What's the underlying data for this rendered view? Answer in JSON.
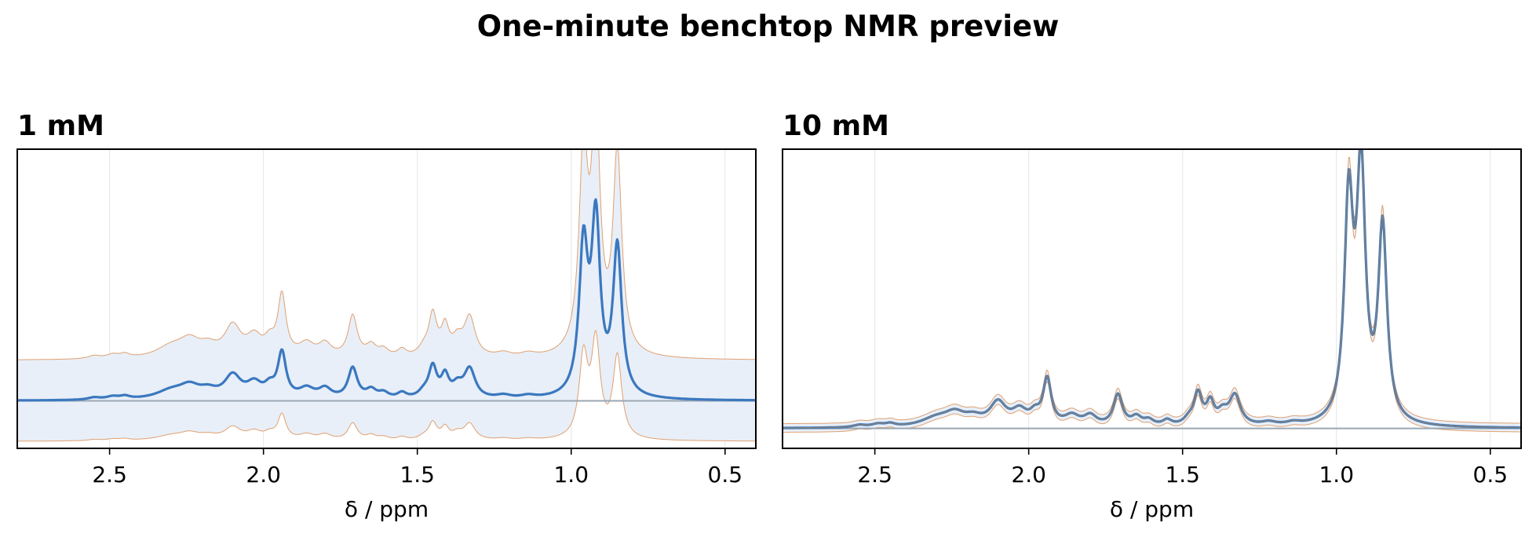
{
  "figure": {
    "title": "One-minute benchtop NMR preview"
  },
  "colors": {
    "mean": "#3b78bf",
    "band_edge": "#e0a070",
    "band_fill": "#e8eff8",
    "baseline": "#9aa7b3",
    "overlay": "#808080",
    "grid": "#e6e6e6"
  },
  "chart_data": [
    {
      "type": "line",
      "title": "1 mM",
      "xlabel": "δ / ppm",
      "x_reversed": true,
      "xlim": [
        2.8,
        0.4
      ],
      "ylim": [
        -0.17,
        0.9
      ],
      "xticks": [
        2.5,
        2.0,
        1.5,
        1.0,
        0.5
      ],
      "xtick_labels": [
        "2.5",
        "2.0",
        "1.5",
        "1.0",
        "0.5"
      ],
      "grid": "x",
      "baseline": 0,
      "band": {
        "lower_offset": -0.145,
        "upper_offset": 0.145,
        "lower_scale": 0.55,
        "upper_scale": 1.35
      },
      "series": [
        {
          "role": "mean",
          "peaks": [
            [
              2.55,
              0.008,
              0.025
            ],
            [
              2.49,
              0.01,
              0.025
            ],
            [
              2.45,
              0.01,
              0.02
            ],
            [
              2.3,
              0.03,
              0.06
            ],
            [
              2.24,
              0.04,
              0.04
            ],
            [
              2.18,
              0.025,
              0.035
            ],
            [
              2.1,
              0.08,
              0.032
            ],
            [
              2.03,
              0.05,
              0.03
            ],
            [
              1.98,
              0.035,
              0.02
            ],
            [
              1.94,
              0.16,
              0.016
            ],
            [
              1.86,
              0.035,
              0.03
            ],
            [
              1.8,
              0.035,
              0.025
            ],
            [
              1.71,
              0.11,
              0.018
            ],
            [
              1.65,
              0.03,
              0.02
            ],
            [
              1.61,
              0.02,
              0.02
            ],
            [
              1.55,
              0.02,
              0.018
            ],
            [
              1.48,
              0.02,
              0.02
            ],
            [
              1.45,
              0.11,
              0.016
            ],
            [
              1.41,
              0.075,
              0.015
            ],
            [
              1.37,
              0.04,
              0.02
            ],
            [
              1.33,
              0.105,
              0.022
            ],
            [
              1.22,
              0.012,
              0.03
            ],
            [
              1.14,
              0.01,
              0.03
            ],
            [
              0.96,
              0.52,
              0.017
            ],
            [
              0.92,
              0.61,
              0.017
            ],
            [
              0.85,
              0.53,
              0.017
            ]
          ]
        }
      ]
    },
    {
      "type": "line",
      "title": "10 mM",
      "xlabel": "δ / ppm",
      "x_reversed": true,
      "xlim": [
        2.8,
        0.4
      ],
      "ylim": [
        -0.07,
        0.98
      ],
      "xticks": [
        2.5,
        2.0,
        1.5,
        1.0,
        0.5
      ],
      "xtick_labels": [
        "2.5",
        "2.0",
        "1.5",
        "1.0",
        "0.5"
      ],
      "grid": "x",
      "baseline": 0,
      "band": {
        "lower_offset": -0.015,
        "upper_offset": 0.015,
        "lower_scale": 0.97,
        "upper_scale": 1.03
      },
      "series": [
        {
          "role": "mean",
          "peaks": [
            [
              2.55,
              0.008,
              0.025
            ],
            [
              2.49,
              0.01,
              0.025
            ],
            [
              2.45,
              0.01,
              0.02
            ],
            [
              2.3,
              0.03,
              0.06
            ],
            [
              2.24,
              0.04,
              0.04
            ],
            [
              2.18,
              0.025,
              0.035
            ],
            [
              2.1,
              0.08,
              0.032
            ],
            [
              2.03,
              0.05,
              0.03
            ],
            [
              1.98,
              0.035,
              0.02
            ],
            [
              1.94,
              0.16,
              0.016
            ],
            [
              1.86,
              0.035,
              0.03
            ],
            [
              1.8,
              0.035,
              0.025
            ],
            [
              1.71,
              0.11,
              0.018
            ],
            [
              1.65,
              0.03,
              0.02
            ],
            [
              1.61,
              0.02,
              0.02
            ],
            [
              1.55,
              0.02,
              0.018
            ],
            [
              1.48,
              0.02,
              0.02
            ],
            [
              1.45,
              0.11,
              0.016
            ],
            [
              1.41,
              0.075,
              0.015
            ],
            [
              1.37,
              0.04,
              0.02
            ],
            [
              1.33,
              0.105,
              0.022
            ],
            [
              1.22,
              0.012,
              0.03
            ],
            [
              1.14,
              0.01,
              0.03
            ],
            [
              0.96,
              0.76,
              0.017
            ],
            [
              0.92,
              0.86,
              0.017
            ],
            [
              0.85,
              0.68,
              0.017
            ]
          ]
        }
      ],
      "overlay": true
    }
  ]
}
